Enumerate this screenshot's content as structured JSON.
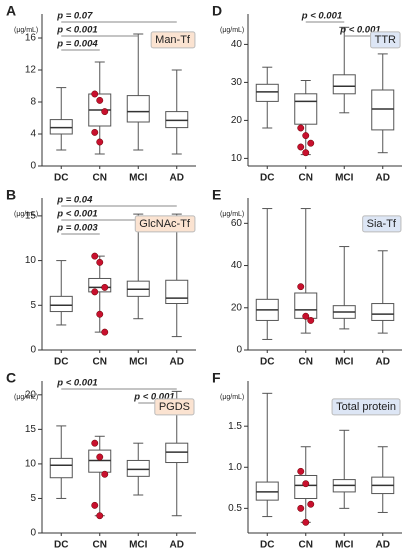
{
  "chart_data": [
    {
      "type": "box",
      "panel": "A",
      "unit": "(μg/mL)",
      "label": "Man-Tf",
      "label_color": "#fbe3d1",
      "categories": [
        "DC",
        "CN",
        "MCI",
        "AD"
      ],
      "ylim": [
        0,
        19
      ],
      "yticks": [
        0,
        4,
        8,
        12,
        16
      ],
      "boxes": [
        {
          "min": 2,
          "q1": 4,
          "median": 4.8,
          "q3": 5.8,
          "max": 9.8
        },
        {
          "min": 1.5,
          "q1": 5,
          "median": 7,
          "q3": 9,
          "max": 13
        },
        {
          "min": 2,
          "q1": 5.5,
          "median": 6.8,
          "q3": 8.8,
          "max": 16.5
        },
        {
          "min": 1.5,
          "q1": 4.8,
          "median": 5.7,
          "q3": 6.8,
          "max": 12
        }
      ],
      "highlight_category": "CN",
      "highlight_color": "#c8102e",
      "highlight_values": [
        9,
        8.2,
        6.8,
        4.2,
        3
      ],
      "comparisons": [
        {
          "between": [
            "DC",
            "AD"
          ],
          "label": "p = 0.07",
          "color": "#555555"
        },
        {
          "between": [
            "DC",
            "MCI"
          ],
          "label": "p < 0.001",
          "color": "#c8102e"
        },
        {
          "between": [
            "DC",
            "CN"
          ],
          "label": "p = 0.004",
          "color": "#c8102e"
        }
      ]
    },
    {
      "type": "box",
      "panel": "B",
      "unit": "(μg/mL)",
      "label": "GlcNAc-Tf",
      "label_color": "#fbe3d1",
      "categories": [
        "DC",
        "CN",
        "MCI",
        "AD"
      ],
      "ylim": [
        0,
        17
      ],
      "yticks": [
        0,
        5,
        10,
        15
      ],
      "boxes": [
        {
          "min": 2.8,
          "q1": 4.3,
          "median": 5,
          "q3": 6,
          "max": 10
        },
        {
          "min": 2,
          "q1": 6.5,
          "median": 7,
          "q3": 8,
          "max": 10.5
        },
        {
          "min": 3.5,
          "q1": 6,
          "median": 6.8,
          "q3": 7.7,
          "max": 15.2
        },
        {
          "min": 1.5,
          "q1": 5.2,
          "median": 5.8,
          "q3": 7.8,
          "max": 15.2
        }
      ],
      "highlight_category": "CN",
      "highlight_color": "#c8102e",
      "highlight_values": [
        10.5,
        9.8,
        7,
        6.5,
        4,
        2
      ],
      "comparisons": [
        {
          "between": [
            "DC",
            "AD"
          ],
          "label": "p = 0.04",
          "color": "#c8102e"
        },
        {
          "between": [
            "DC",
            "MCI"
          ],
          "label": "p < 0.001",
          "color": "#c8102e"
        },
        {
          "between": [
            "DC",
            "CN"
          ],
          "label": "p = 0.003",
          "color": "#c8102e"
        }
      ]
    },
    {
      "type": "box",
      "panel": "C",
      "unit": "(μg/mL)",
      "label": "PGDS",
      "label_color": "#fbe3d1",
      "categories": [
        "DC",
        "CN",
        "MCI",
        "AD"
      ],
      "ylim": [
        0,
        22
      ],
      "yticks": [
        0,
        5,
        10,
        15,
        20
      ],
      "boxes": [
        {
          "min": 5,
          "q1": 8,
          "median": 9.8,
          "q3": 10.8,
          "max": 15.5
        },
        {
          "min": 2.5,
          "q1": 8.8,
          "median": 10.5,
          "q3": 12,
          "max": 14
        },
        {
          "min": 5.5,
          "q1": 8.2,
          "median": 9.2,
          "q3": 10.5,
          "max": 13
        },
        {
          "min": 2.5,
          "q1": 10.2,
          "median": 11.7,
          "q3": 13,
          "max": 20.5
        }
      ],
      "highlight_category": "CN",
      "highlight_color": "#c8102e",
      "highlight_values": [
        13,
        11,
        8.5,
        4,
        2.5
      ],
      "comparisons": [
        {
          "between": [
            "DC",
            "AD"
          ],
          "label": "p < 0.001",
          "color": "#c8102e"
        },
        {
          "between": [
            "MCI",
            "AD"
          ],
          "label": "p < 0.001",
          "color": "#c8102e"
        }
      ]
    },
    {
      "type": "box",
      "panel": "D",
      "unit": "(μg/mL)",
      "label": "TTR",
      "label_color": "#dde6f5",
      "categories": [
        "DC",
        "CN",
        "MCI",
        "AD"
      ],
      "ylim": [
        8,
        48
      ],
      "yticks": [
        10,
        20,
        30,
        40
      ],
      "boxes": [
        {
          "min": 18,
          "q1": 25,
          "median": 27.5,
          "q3": 29.5,
          "max": 34
        },
        {
          "min": 11,
          "q1": 19,
          "median": 25,
          "q3": 27,
          "max": 30.5
        },
        {
          "min": 22,
          "q1": 27,
          "median": 29,
          "q3": 32,
          "max": 44.5
        },
        {
          "min": 11.5,
          "q1": 17.5,
          "median": 23,
          "q3": 28,
          "max": 37.5
        }
      ],
      "highlight_category": "CN",
      "highlight_color": "#c8102e",
      "highlight_values": [
        18,
        16,
        14,
        13,
        11.5
      ],
      "comparisons": [
        {
          "between": [
            "CN",
            "MCI"
          ],
          "label": "p < 0.001",
          "color": "#c8102e"
        },
        {
          "between": [
            "MCI",
            "AD"
          ],
          "label": "p < 0.001",
          "color": "#c8102e"
        }
      ]
    },
    {
      "type": "box",
      "panel": "E",
      "unit": "(μg/mL)",
      "label": "Sia-Tf",
      "label_color": "#dde6f5",
      "categories": [
        "DC",
        "CN",
        "MCI",
        "AD"
      ],
      "ylim": [
        0,
        72
      ],
      "yticks": [
        0,
        20,
        40,
        60
      ],
      "boxes": [
        {
          "min": 5,
          "q1": 14,
          "median": 19,
          "q3": 24,
          "max": 67
        },
        {
          "min": 8,
          "q1": 15,
          "median": 19,
          "q3": 27,
          "max": 67
        },
        {
          "min": 10,
          "q1": 15,
          "median": 18,
          "q3": 21,
          "max": 49
        },
        {
          "min": 8,
          "q1": 14,
          "median": 17,
          "q3": 22,
          "max": 47
        }
      ],
      "highlight_category": "CN",
      "highlight_color": "#c8102e",
      "highlight_values": [
        30,
        16,
        14
      ],
      "comparisons": []
    },
    {
      "type": "box",
      "panel": "F",
      "unit": "(μg/mL)",
      "label": "Total protein",
      "label_color": "#dde6f5",
      "categories": [
        "DC",
        "CN",
        "MCI",
        "AD"
      ],
      "ylim": [
        0.2,
        2.05
      ],
      "yticks": [
        0.5,
        {
          "value": 1,
          "label": "1.0"
        },
        1.5
      ],
      "boxes": [
        {
          "min": 0.4,
          "q1": 0.6,
          "median": 0.7,
          "q3": 0.82,
          "max": 1.9
        },
        {
          "min": 0.33,
          "q1": 0.62,
          "median": 0.78,
          "q3": 0.9,
          "max": 1.25
        },
        {
          "min": 0.5,
          "q1": 0.7,
          "median": 0.78,
          "q3": 0.85,
          "max": 1.45
        },
        {
          "min": 0.45,
          "q1": 0.68,
          "median": 0.78,
          "q3": 0.88,
          "max": 1.25
        }
      ],
      "highlight_category": "CN",
      "highlight_color": "#c8102e",
      "highlight_values": [
        0.95,
        0.8,
        0.55,
        0.5,
        0.33
      ],
      "comparisons": []
    }
  ]
}
